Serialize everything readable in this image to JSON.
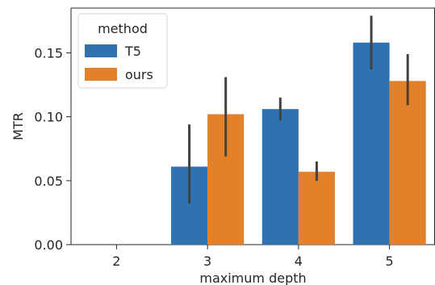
{
  "chart_data": {
    "type": "bar",
    "xlabel": "maximum depth",
    "ylabel": "MTR",
    "categories": [
      "2",
      "3",
      "4",
      "5"
    ],
    "ylim": [
      0,
      0.185
    ],
    "yticks": [
      0.0,
      0.05,
      0.1,
      0.15
    ],
    "ytick_labels": [
      "0.00",
      "0.05",
      "0.10",
      "0.15"
    ],
    "grid": false,
    "legend": {
      "title": "method",
      "placement": "top-left"
    },
    "series": [
      {
        "name": "T5",
        "color": "#2f72b0",
        "values": [
          0.0,
          0.061,
          0.106,
          0.158
        ],
        "error_low": [
          0.0,
          0.032,
          0.097,
          0.137
        ],
        "error_high": [
          0.0,
          0.094,
          0.115,
          0.179
        ]
      },
      {
        "name": "ours",
        "color": "#e3812a",
        "values": [
          0.0,
          0.102,
          0.057,
          0.128
        ],
        "error_low": [
          0.0,
          0.069,
          0.05,
          0.109
        ],
        "error_high": [
          0.0,
          0.131,
          0.065,
          0.149
        ]
      }
    ]
  }
}
